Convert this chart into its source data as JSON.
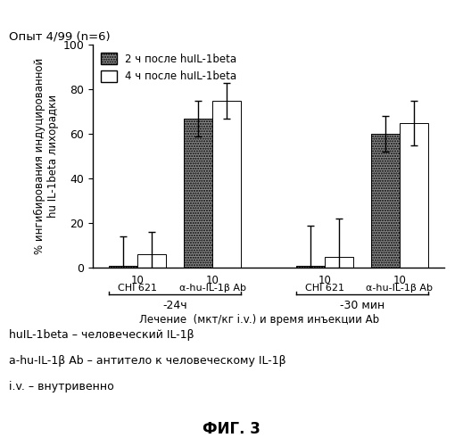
{
  "title": "Опыт 4/99 (n=6)",
  "ylabel_line1": "% ингибирования индуцированной",
  "ylabel_line2": "hu IL-1beta лихорадки",
  "xlabel": "Лечение  (мкт/кг i.v.) и время инъекции Ab",
  "bar_values_2h": [
    1,
    67,
    1,
    60
  ],
  "bar_values_4h": [
    6,
    75,
    5,
    65
  ],
  "bar_errors_2h": [
    13,
    8,
    18,
    8
  ],
  "bar_errors_4h": [
    10,
    8,
    17,
    10
  ],
  "ylim": [
    0,
    100
  ],
  "yticks": [
    0,
    20,
    40,
    60,
    80,
    100
  ],
  "legend_labels": [
    "2 ч после huIL-1beta",
    "4 ч после huIL-1beta"
  ],
  "bar_labels_top": [
    "10",
    "10",
    "10",
    "10"
  ],
  "bar_labels_bottom": [
    "CHI 621",
    "α-hu-IL-1β Ab",
    "CHI 621",
    "α-hu-IL-1β Ab"
  ],
  "group_label_1": "-24ч",
  "group_label_2": "-30 мин",
  "bar_width": 0.38,
  "group_positions": [
    0.5,
    1.5,
    3.0,
    4.0
  ],
  "footnotes": [
    "huIL-1beta – человеческий IL-1β",
    "a-hu-IL-1β Ab – антитело к человеческому IL-1β",
    "i.v. – внутривенно"
  ],
  "figure_label": "ФИГ. 3",
  "background_color": "#ffffff"
}
